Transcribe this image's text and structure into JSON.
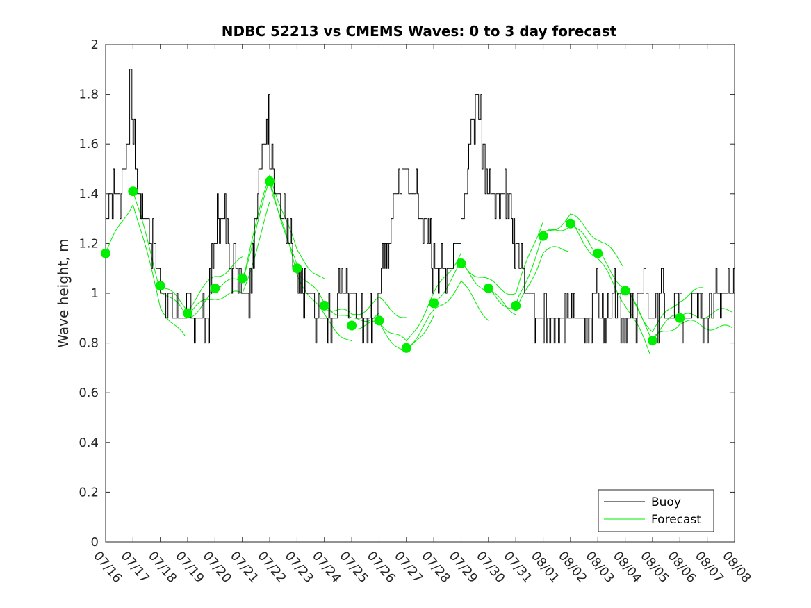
{
  "chart_data": {
    "type": "line",
    "title": "NDBC 52213 vs CMEMS Waves: 0 to 3 day forecast",
    "xlabel": "",
    "ylabel": "Wave height, m",
    "ylim": [
      0,
      2
    ],
    "yticks": [
      "0",
      "0.2",
      "0.4",
      "0.6",
      "0.8",
      "1",
      "1.2",
      "1.4",
      "1.6",
      "1.8",
      "2"
    ],
    "xticks": [
      "07/16",
      "07/17",
      "07/18",
      "07/19",
      "07/20",
      "07/21",
      "07/22",
      "07/23",
      "07/24",
      "07/25",
      "07/26",
      "07/27",
      "07/28",
      "07/29",
      "07/30",
      "07/31",
      "08/01",
      "08/02",
      "08/03",
      "08/04",
      "08/05",
      "08/06",
      "08/07",
      "08/08"
    ],
    "grid": false,
    "legend_position": "bottom-right",
    "colors": {
      "buoy": "#000000",
      "forecast": "#00ee00"
    },
    "legend": [
      "Buoy",
      "Forecast"
    ],
    "buoy": {
      "name": "Buoy",
      "x": [
        0,
        0.1,
        0.3,
        0.5,
        0.7,
        0.8,
        0.9,
        1.0,
        1.1,
        1.2,
        1.3,
        1.5,
        1.7,
        1.9,
        2.0,
        2.2,
        2.4,
        2.6,
        2.8,
        3.0,
        3.2,
        3.4,
        3.6,
        3.8,
        4.0,
        4.1,
        4.2,
        4.3,
        4.4,
        4.5,
        4.6,
        4.8,
        5.0,
        5.2,
        5.4,
        5.6,
        5.8,
        5.9,
        6.0,
        6.1,
        6.2,
        6.4,
        6.6,
        6.8,
        7.0,
        7.2,
        7.4,
        7.6,
        7.8,
        8.0,
        8.2,
        8.4,
        8.6,
        8.8,
        9.0,
        9.2,
        9.4,
        9.5,
        9.6,
        9.8,
        10.0,
        10.2,
        10.4,
        10.6,
        10.8,
        11.0,
        11.2,
        11.4,
        11.6,
        11.8,
        12.0,
        12.2,
        12.4,
        12.6,
        12.8,
        13.0,
        13.2,
        13.4,
        13.6,
        13.8,
        14.0,
        14.2,
        14.4,
        14.6,
        14.8,
        15.0,
        15.2,
        15.4,
        15.6,
        15.8,
        16.0,
        16.1,
        16.2,
        16.3,
        16.4,
        16.6,
        16.8,
        17.0,
        17.2,
        17.4,
        17.6,
        17.8,
        18.0,
        18.2,
        18.4,
        18.6,
        18.8,
        19.0,
        19.2,
        19.4,
        19.6,
        19.8,
        20.0,
        20.2,
        20.4,
        20.6,
        20.8,
        21.0,
        21.2,
        21.4,
        21.6,
        21.8,
        22.0,
        22.2,
        22.4,
        22.6,
        22.8,
        23.0
      ],
      "y": [
        1.3,
        1.4,
        1.45,
        1.4,
        1.5,
        1.6,
        1.8,
        1.6,
        1.5,
        1.4,
        1.3,
        1.3,
        1.2,
        1.1,
        1.05,
        1.0,
        0.95,
        0.9,
        0.92,
        0.95,
        0.9,
        0.88,
        0.9,
        0.95,
        1.2,
        1.3,
        1.35,
        1.3,
        1.25,
        1.2,
        1.15,
        1.1,
        1.05,
        1.0,
        1.2,
        1.45,
        1.6,
        1.7,
        1.65,
        1.55,
        1.45,
        1.3,
        1.25,
        1.15,
        1.05,
        1.0,
        0.97,
        0.95,
        0.9,
        0.85,
        0.87,
        0.93,
        1.0,
        1.05,
        1.0,
        0.95,
        0.92,
        0.9,
        0.85,
        0.85,
        1.0,
        1.1,
        1.25,
        1.4,
        1.45,
        1.45,
        1.4,
        1.35,
        1.3,
        1.2,
        1.1,
        1.05,
        1.05,
        1.1,
        1.2,
        1.3,
        1.5,
        1.65,
        1.75,
        1.6,
        1.4,
        1.35,
        1.4,
        1.45,
        1.35,
        1.2,
        1.1,
        1.0,
        0.95,
        0.92,
        0.95,
        0.95,
        0.92,
        0.9,
        0.92,
        0.95,
        0.93,
        0.92,
        0.95,
        0.9,
        0.93,
        0.95,
        0.95,
        0.92,
        0.95,
        0.95,
        0.95,
        0.9,
        0.92,
        0.95,
        0.95,
        0.95,
        0.92,
        0.95,
        0.95,
        0.93,
        0.95,
        0.95,
        0.92,
        0.95,
        0.95,
        0.95,
        0.93,
        0.95,
        0.95,
        0.95,
        0.95,
        0.95
      ],
      "note": ""
    },
    "markers": {
      "x": [
        0,
        1,
        2,
        3,
        4,
        5,
        6,
        7,
        8,
        9,
        10,
        11,
        12,
        13,
        14,
        15,
        16,
        17,
        18,
        19,
        20,
        21
      ],
      "y": [
        1.16,
        1.41,
        1.03,
        0.92,
        1.02,
        1.06,
        1.45,
        1.1,
        0.95,
        0.87,
        0.89,
        0.78,
        0.96,
        1.12,
        1.02,
        0.95,
        1.23,
        1.28,
        1.16,
        1.01,
        0.81,
        0.9
      ]
    }
  }
}
